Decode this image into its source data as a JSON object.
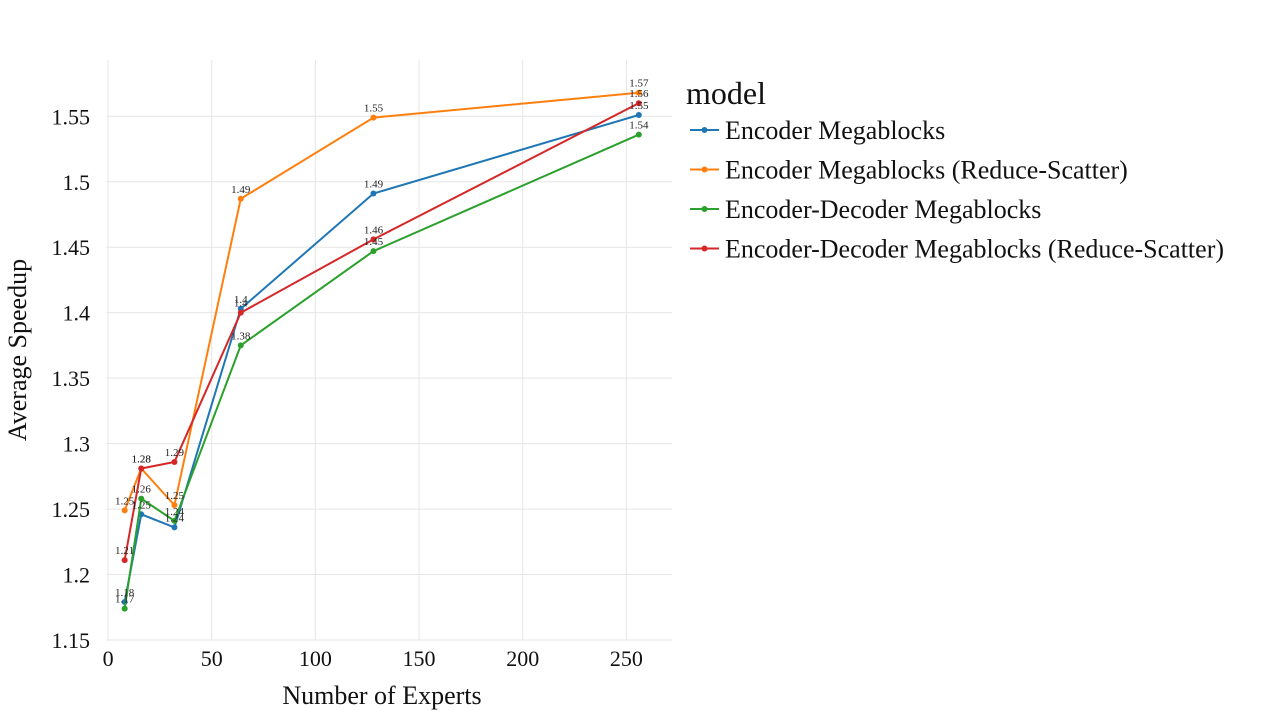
{
  "chart_data": {
    "type": "line",
    "xlabel": "Number of Experts",
    "ylabel": "Average Speedup",
    "xlim": [
      -1,
      272
    ],
    "ylim": [
      1.15,
      1.593
    ],
    "x_ticks": [
      0,
      50,
      100,
      150,
      200,
      250
    ],
    "x_tick_labels": [
      "0",
      "50",
      "100",
      "150",
      "200",
      "250"
    ],
    "y_ticks": [
      1.15,
      1.2,
      1.25,
      1.3,
      1.35,
      1.4,
      1.45,
      1.5,
      1.55
    ],
    "y_tick_labels": [
      "1.15",
      "1.2",
      "1.25",
      "1.3",
      "1.35",
      "1.4",
      "1.45",
      "1.5",
      "1.55"
    ],
    "grid": true,
    "legend": {
      "title": "model",
      "placement": "right"
    },
    "x": [
      8,
      16,
      32,
      64,
      128,
      256
    ],
    "series": [
      {
        "name": "Encoder Megablocks",
        "color": "#1f77b4",
        "values": [
          1.179,
          1.246,
          1.236,
          1.403,
          1.491,
          1.551
        ],
        "labels": [
          "1.18",
          "1.25",
          "1.24",
          "1.4",
          "1.49",
          "1.55"
        ]
      },
      {
        "name": "Encoder Megablocks (Reduce-Scatter)",
        "color": "#ff7f0e",
        "values": [
          1.249,
          1.281,
          1.253,
          1.487,
          1.549,
          1.568
        ],
        "labels": [
          "1.25",
          "1.28",
          "1.25",
          "1.49",
          "1.55",
          "1.57"
        ]
      },
      {
        "name": "Encoder-Decoder Megablocks",
        "color": "#2ca02c",
        "values": [
          1.174,
          1.258,
          1.241,
          1.375,
          1.447,
          1.536
        ],
        "labels": [
          "1.17",
          "1.26",
          "1.24",
          "1.38",
          "1.45",
          "1.54"
        ]
      },
      {
        "name": "Encoder-Decoder Megablocks (Reduce-Scatter)",
        "color": "#d62728",
        "values": [
          1.211,
          1.281,
          1.286,
          1.4,
          1.456,
          1.56
        ],
        "labels": [
          "1.21",
          "1.28",
          "1.29",
          "1.4",
          "1.46",
          "1.56"
        ]
      }
    ]
  }
}
